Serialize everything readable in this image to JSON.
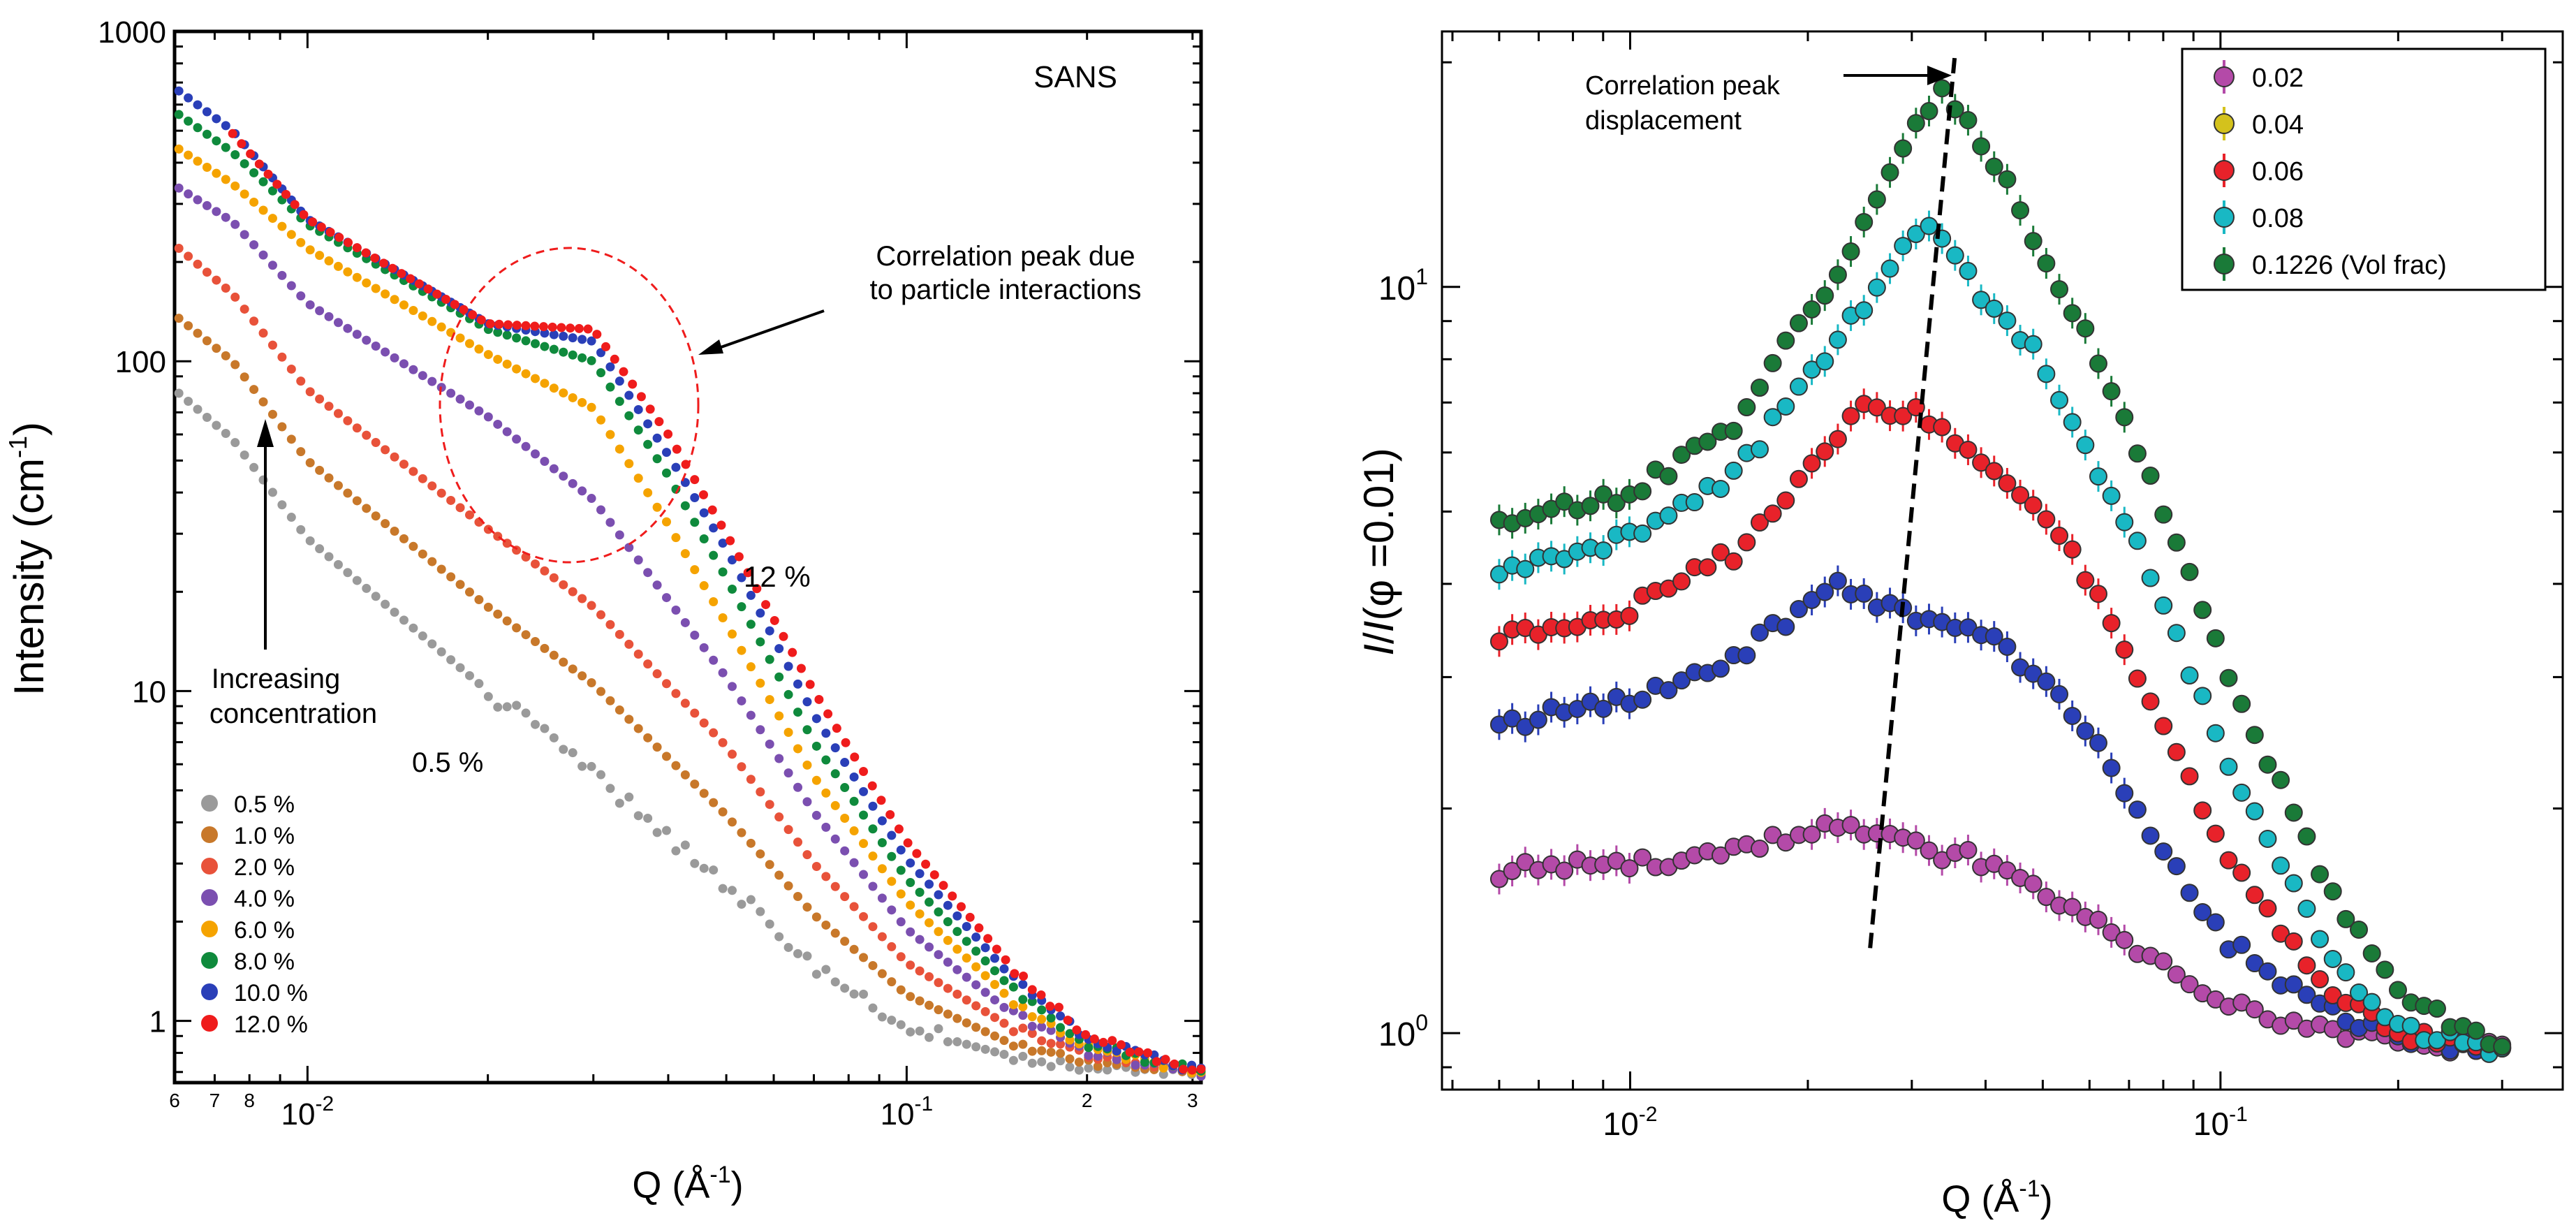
{
  "chart_data": [
    {
      "type": "scatter",
      "title": "SANS",
      "xlabel": "Q (Å",
      "xlabel_sup": "-1",
      "xlabel_end": ")",
      "ylabel": "Intensity (cm",
      "ylabel_sup": "-1",
      "ylabel_end": ")",
      "xscale": "log",
      "yscale": "log",
      "xlim": [
        0.006,
        0.31
      ],
      "ylim": [
        0.65,
        1000
      ],
      "xticks_major": [
        {
          "value": 0.01,
          "base": "10",
          "exp": "-2"
        },
        {
          "value": 0.1,
          "base": "10",
          "exp": "-1"
        }
      ],
      "xticks_minor": [
        {
          "value": 0.006,
          "label": "6"
        },
        {
          "value": 0.007,
          "label": "7"
        },
        {
          "value": 0.008,
          "label": "8"
        },
        {
          "value": 0.2,
          "label": "2"
        },
        {
          "value": 0.3,
          "label": "3"
        }
      ],
      "yticks": [
        {
          "value": 1,
          "label": "1"
        },
        {
          "value": 10,
          "label": "10"
        },
        {
          "value": 100,
          "label": "100"
        },
        {
          "value": 1000,
          "label": "1000"
        }
      ],
      "legend_position": "bottom-left",
      "series": [
        {
          "name": "0.5 %",
          "color": "#9a9a9a",
          "peak_amp": 0.0,
          "points": [
            [
              0.0061,
              80
            ],
            [
              0.0075,
              58
            ],
            [
              0.01,
              29
            ],
            [
              0.02,
              10
            ],
            [
              0.03,
              5.6
            ],
            [
              0.05,
              2.6
            ],
            [
              0.07,
              1.45
            ],
            [
              0.1,
              0.95
            ],
            [
              0.15,
              0.78
            ],
            [
              0.2,
              0.72
            ],
            [
              0.31,
              0.7
            ]
          ]
        },
        {
          "name": "1.0 %",
          "color": "#c8782a",
          "peak_amp": 0.0,
          "points": [
            [
              0.0061,
              135
            ],
            [
              0.0075,
              100
            ],
            [
              0.01,
              50
            ],
            [
              0.02,
              18
            ],
            [
              0.03,
              10.5
            ],
            [
              0.05,
              4.2
            ],
            [
              0.07,
              2.1
            ],
            [
              0.1,
              1.2
            ],
            [
              0.15,
              0.85
            ],
            [
              0.2,
              0.74
            ],
            [
              0.31,
              0.7
            ]
          ]
        },
        {
          "name": "2.0 %",
          "color": "#e8523a",
          "peak_amp": 0.0,
          "points": [
            [
              0.0061,
              220
            ],
            [
              0.0075,
              160
            ],
            [
              0.01,
              82
            ],
            [
              0.02,
              31
            ],
            [
              0.03,
              18
            ],
            [
              0.05,
              6.8
            ],
            [
              0.07,
              3.0
            ],
            [
              0.1,
              1.5
            ],
            [
              0.15,
              0.95
            ],
            [
              0.2,
              0.78
            ],
            [
              0.31,
              0.7
            ]
          ]
        },
        {
          "name": "4.0 %",
          "color": "#7b4fb0",
          "peak_amp": 0.0,
          "points": [
            [
              0.0061,
              335
            ],
            [
              0.0075,
              265
            ],
            [
              0.01,
              150
            ],
            [
              0.02,
              68
            ],
            [
              0.03,
              38
            ],
            [
              0.05,
              11
            ],
            [
              0.07,
              4.3
            ],
            [
              0.1,
              1.9
            ],
            [
              0.15,
              1.05
            ],
            [
              0.2,
              0.8
            ],
            [
              0.31,
              0.7
            ]
          ]
        },
        {
          "name": "6.0 %",
          "color": "#f5a300",
          "peak_amp": 0.0,
          "points": [
            [
              0.0061,
              440
            ],
            [
              0.0075,
              345
            ],
            [
              0.01,
              220
            ],
            [
              0.02,
              105
            ],
            [
              0.03,
              72
            ],
            [
              0.04,
              32
            ],
            [
              0.05,
              16
            ],
            [
              0.07,
              5.5
            ],
            [
              0.1,
              2.3
            ],
            [
              0.15,
              1.15
            ],
            [
              0.2,
              0.83
            ],
            [
              0.31,
              0.7
            ]
          ]
        },
        {
          "name": "8.0 %",
          "color": "#0f8a3c",
          "peak_amp": 0.0,
          "points": [
            [
              0.0061,
              560
            ],
            [
              0.0075,
              430
            ],
            [
              0.01,
              260
            ],
            [
              0.02,
              125
            ],
            [
              0.03,
              100
            ],
            [
              0.04,
              45
            ],
            [
              0.05,
              22
            ],
            [
              0.07,
              7
            ],
            [
              0.1,
              2.7
            ],
            [
              0.15,
              1.25
            ],
            [
              0.2,
              0.85
            ],
            [
              0.31,
              0.7
            ]
          ]
        },
        {
          "name": "10.0 %",
          "color": "#2a3fb8",
          "peak_amp": 0.0,
          "points": [
            [
              0.0061,
              660
            ],
            [
              0.0075,
              500
            ],
            [
              0.01,
              270
            ],
            [
              0.02,
              130
            ],
            [
              0.03,
              115
            ],
            [
              0.04,
              52
            ],
            [
              0.05,
              27
            ],
            [
              0.07,
              8.5
            ],
            [
              0.1,
              3.1
            ],
            [
              0.15,
              1.35
            ],
            [
              0.2,
              0.88
            ],
            [
              0.31,
              0.7
            ]
          ]
        },
        {
          "name": "12.0 %",
          "color": "#ef1c1c",
          "peak_amp": 0.0,
          "points": [
            [
              0.0075,
              490
            ],
            [
              0.01,
              270
            ],
            [
              0.02,
              130
            ],
            [
              0.03,
              125
            ],
            [
              0.04,
              60
            ],
            [
              0.05,
              30
            ],
            [
              0.07,
              10
            ],
            [
              0.1,
              3.5
            ],
            [
              0.15,
              1.45
            ],
            [
              0.2,
              0.9
            ],
            [
              0.31,
              0.7
            ]
          ]
        }
      ],
      "annotations": {
        "peak": "Correlation peak due",
        "peak_line2": "to particle interactions",
        "concentration": "Increasing",
        "concentration_line2": "concentration",
        "low_label": "0.5 %",
        "high_label": "12 %"
      }
    },
    {
      "type": "scatter",
      "xlabel": "Q (Å",
      "xlabel_sup": "-1",
      "xlabel_end": ")",
      "ylabel_i1": "I",
      "ylabel_mid": "/",
      "ylabel_i2": "I",
      "ylabel_end": "(φ =0.01)",
      "xscale": "log",
      "yscale": "log",
      "xlim": [
        0.0048,
        0.38
      ],
      "ylim": [
        0.84,
        22
      ],
      "xticks": [
        {
          "value": 0.01,
          "base": "10",
          "exp": "-2"
        },
        {
          "value": 0.1,
          "base": "10",
          "exp": "-1"
        }
      ],
      "yticks": [
        {
          "value": 1,
          "base": "10",
          "exp": "0"
        },
        {
          "value": 10,
          "base": "10",
          "exp": "1"
        }
      ],
      "legend_position": "top-right",
      "series": [
        {
          "name": "0.02",
          "color": "#b44aa8",
          "points": [
            [
              0.006,
              1.65
            ],
            [
              0.01,
              1.68
            ],
            [
              0.015,
              1.75
            ],
            [
              0.022,
              1.9
            ],
            [
              0.03,
              1.78
            ],
            [
              0.04,
              1.7
            ],
            [
              0.05,
              1.55
            ],
            [
              0.06,
              1.42
            ],
            [
              0.08,
              1.22
            ],
            [
              0.1,
              1.1
            ],
            [
              0.15,
              1.0
            ],
            [
              0.2,
              0.97
            ],
            [
              0.3,
              0.95
            ]
          ]
        },
        {
          "name": "0.04",
          "color": "#d4c21c",
          "points": [
            [
              0.006,
              2.6
            ],
            [
              0.01,
              2.8
            ],
            [
              0.015,
              3.2
            ],
            [
              0.023,
              4.0
            ],
            [
              0.03,
              3.6
            ],
            [
              0.04,
              3.4
            ],
            [
              0.05,
              3.0
            ],
            [
              0.06,
              2.5
            ],
            [
              0.08,
              1.75
            ],
            [
              0.1,
              1.35
            ],
            [
              0.15,
              1.07
            ],
            [
              0.2,
              0.99
            ],
            [
              0.3,
              0.95
            ]
          ]
        },
        {
          "name": "0.06",
          "color": "#e8222a",
          "points": [
            [
              0.006,
              3.4
            ],
            [
              0.01,
              3.7
            ],
            [
              0.015,
              4.4
            ],
            [
              0.025,
              7.0
            ],
            [
              0.03,
              6.8
            ],
            [
              0.04,
              5.8
            ],
            [
              0.05,
              5.0
            ],
            [
              0.06,
              4.0
            ],
            [
              0.08,
              2.6
            ],
            [
              0.1,
              1.75
            ],
            [
              0.15,
              1.15
            ],
            [
              0.2,
              1.0
            ],
            [
              0.3,
              0.95
            ]
          ]
        },
        {
          "name": "0.08",
          "color": "#19b8c4",
          "points": [
            [
              0.006,
              4.2
            ],
            [
              0.01,
              4.6
            ],
            [
              0.015,
              5.6
            ],
            [
              0.025,
              9.5
            ],
            [
              0.03,
              12
            ],
            [
              0.035,
              11.5
            ],
            [
              0.04,
              9.5
            ],
            [
              0.05,
              8.0
            ],
            [
              0.06,
              6.0
            ],
            [
              0.08,
              3.8
            ],
            [
              0.1,
              2.4
            ],
            [
              0.15,
              1.3
            ],
            [
              0.2,
              1.02
            ],
            [
              0.3,
              0.95
            ]
          ]
        },
        {
          "name": "0.1226 (Vol frac)",
          "color": "#1a7a38",
          "points": [
            [
              0.006,
              4.9
            ],
            [
              0.01,
              5.3
            ],
            [
              0.015,
              6.5
            ],
            [
              0.025,
              12
            ],
            [
              0.03,
              16
            ],
            [
              0.034,
              18.5
            ],
            [
              0.04,
              15.5
            ],
            [
              0.05,
              11
            ],
            [
              0.06,
              8.5
            ],
            [
              0.08,
              5.0
            ],
            [
              0.1,
              3.2
            ],
            [
              0.15,
              1.6
            ],
            [
              0.2,
              1.12
            ],
            [
              0.3,
              0.95
            ]
          ]
        }
      ],
      "annotations": {
        "peak": "Correlation  peak",
        "peak_line2": "displacement"
      },
      "trend_line": [
        [
          0.0255,
          1.3
        ],
        [
          0.0355,
          20.5
        ]
      ]
    }
  ]
}
